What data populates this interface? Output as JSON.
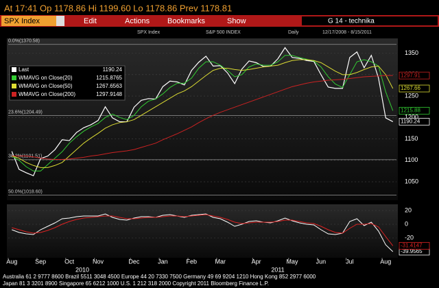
{
  "header": {
    "quote": "At 17:41 Op 1178.86 Hi 1199.60 Lo 1178.86 Prev 1178.81"
  },
  "toolbar": {
    "ticker": "SPX Index",
    "menus": [
      "Edit",
      "Actions",
      "Bookmarks",
      "Show"
    ],
    "page": "G 14 - technika"
  },
  "chart_data": [
    {
      "type": "line",
      "header_labels": [
        "SPX Index",
        "S&P 500 INDEX",
        "Daily",
        "12/17/2008 - 8/15/2011"
      ],
      "categories": [
        "Aug",
        null,
        null,
        null,
        "Sep",
        null,
        null,
        null,
        "Oct",
        null,
        null,
        null,
        "Nov",
        null,
        null,
        null,
        null,
        "Dec",
        null,
        null,
        null,
        "Jan",
        null,
        null,
        null,
        "Feb",
        null,
        null,
        null,
        "Mar",
        null,
        null,
        null,
        null,
        "Apr",
        null,
        null,
        null,
        null,
        "May",
        null,
        null,
        null,
        "Jun",
        null,
        null,
        null,
        "Jul",
        null,
        null,
        null,
        null,
        "Aug",
        null
      ],
      "years": [
        "2010",
        "2011"
      ],
      "ylim": [
        1010,
        1375
      ],
      "yticks": [
        1050,
        1100,
        1150,
        1200,
        1250,
        1300,
        1350
      ],
      "levels": [
        {
          "value": 1370.58,
          "label": "0.0%(1370.58)"
        },
        {
          "value": 1204.49,
          "label": "23.6%(1204.49)"
        },
        {
          "value": 1101.51,
          "label": "38.2%(1101.51)"
        },
        {
          "value": 1018.6,
          "label": "50.0%(1018.60)"
        }
      ],
      "series": [
        {
          "name": "Last",
          "color": "#ffffff",
          "last": 1190.24,
          "tag": 1190.24,
          "values": [
            1121,
            1079,
            1071,
            1064,
            1104,
            1110,
            1125,
            1148,
            1146,
            1165,
            1176,
            1183,
            1193,
            1225,
            1199,
            1190,
            1190,
            1224,
            1240,
            1244,
            1243,
            1272,
            1285,
            1283,
            1276,
            1310,
            1329,
            1343,
            1320,
            1321,
            1304,
            1279,
            1313,
            1332,
            1328,
            1319,
            1320,
            1337,
            1363,
            1340,
            1338,
            1333,
            1331,
            1300,
            1271,
            1268,
            1268,
            1340,
            1353,
            1316,
            1345,
            1292,
            1199,
            1190.24
          ]
        },
        {
          "name": "WMAVG on Close(20)",
          "color": "#33cc33",
          "last": 1215.8765,
          "tag": 1215.88,
          "values": [
            1110,
            1100,
            1085,
            1075,
            1075,
            1090,
            1105,
            1120,
            1140,
            1155,
            1168,
            1178,
            1186,
            1200,
            1208,
            1200,
            1195,
            1205,
            1225,
            1238,
            1243,
            1255,
            1270,
            1280,
            1280,
            1292,
            1315,
            1330,
            1330,
            1322,
            1310,
            1295,
            1300,
            1318,
            1325,
            1322,
            1322,
            1330,
            1345,
            1345,
            1340,
            1336,
            1332,
            1318,
            1295,
            1278,
            1270,
            1300,
            1330,
            1335,
            1330,
            1320,
            1260,
            1215.8765
          ]
        },
        {
          "name": "WMAVG on Close(50)",
          "color": "#dddd33",
          "last": 1267.6563,
          "tag": 1267.66,
          "values": [
            1110,
            1105,
            1095,
            1088,
            1083,
            1083,
            1088,
            1095,
            1110,
            1125,
            1140,
            1152,
            1163,
            1175,
            1183,
            1188,
            1190,
            1195,
            1205,
            1215,
            1225,
            1235,
            1245,
            1255,
            1262,
            1272,
            1285,
            1298,
            1310,
            1315,
            1315,
            1312,
            1310,
            1312,
            1315,
            1318,
            1320,
            1322,
            1328,
            1333,
            1335,
            1335,
            1333,
            1328,
            1318,
            1308,
            1300,
            1300,
            1305,
            1312,
            1318,
            1320,
            1300,
            1267.6563
          ]
        },
        {
          "name": "WMAVG on Close(200)",
          "color": "#cc2222",
          "last": 1297.9148,
          "tag": 1297.91,
          "values": [
            1110,
            1110,
            1110,
            1108,
            1105,
            1103,
            1102,
            1102,
            1103,
            1105,
            1107,
            1110,
            1112,
            1115,
            1118,
            1120,
            1122,
            1125,
            1130,
            1135,
            1140,
            1148,
            1155,
            1162,
            1170,
            1178,
            1188,
            1197,
            1205,
            1212,
            1218,
            1224,
            1230,
            1236,
            1242,
            1248,
            1254,
            1260,
            1266,
            1272,
            1276,
            1280,
            1283,
            1285,
            1287,
            1288,
            1289,
            1291,
            1293,
            1295,
            1296,
            1297,
            1298,
            1297.9148
          ]
        }
      ]
    },
    {
      "type": "line",
      "ylim": [
        -45,
        25
      ],
      "yticks": [
        -20,
        0,
        20
      ],
      "series": [
        {
          "color": "#ffffff",
          "tag": -39.9565,
          "values": [
            -8,
            -12,
            -14,
            -15,
            -8,
            -3,
            2,
            8,
            9,
            11,
            12,
            12,
            12,
            15,
            10,
            7,
            6,
            9,
            11,
            11,
            10,
            13,
            14,
            12,
            10,
            13,
            14,
            15,
            10,
            8,
            3,
            -3,
            0,
            4,
            5,
            3,
            2,
            5,
            9,
            5,
            2,
            0,
            -1,
            -8,
            -14,
            -15,
            -13,
            4,
            8,
            -2,
            3,
            -10,
            -30,
            -39.9565
          ]
        },
        {
          "color": "#dd2222",
          "tag": -31.4147,
          "values": [
            -5,
            -8,
            -11,
            -13,
            -12,
            -9,
            -5,
            0,
            4,
            7,
            9,
            10,
            11,
            12,
            12,
            10,
            8,
            8,
            9,
            10,
            10,
            11,
            12,
            12,
            11,
            12,
            13,
            14,
            12,
            10,
            7,
            3,
            1,
            2,
            3,
            3,
            3,
            4,
            6,
            6,
            4,
            2,
            1,
            -3,
            -8,
            -12,
            -13,
            -6,
            0,
            0,
            1,
            -4,
            -18,
            -31.4147
          ]
        }
      ]
    }
  ],
  "footer": [
    "Australia 61 2 9777 8600 Brazil 5511 3048 4500 Europe 44 20 7330 7500 Germany 49 69 9204 1210 Hong Kong 852 2977 6000",
    "Japan 81 3 3201 8900 Singapore 65 6212 1000 U.S. 1 212 318 2000 Copyright 2011 Bloomberg Finance L.P."
  ]
}
